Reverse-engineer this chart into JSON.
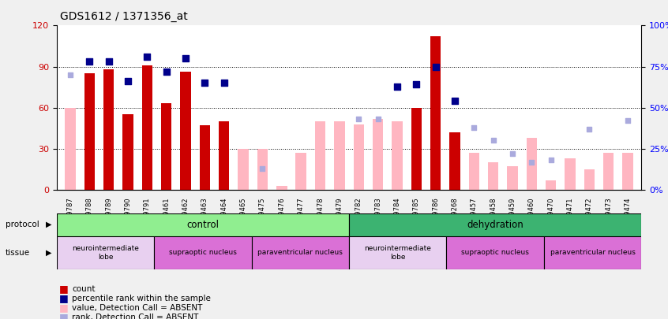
{
  "title": "GDS1612 / 1371356_at",
  "samples": [
    "GSM69787",
    "GSM69788",
    "GSM69789",
    "GSM69790",
    "GSM69791",
    "GSM69461",
    "GSM69462",
    "GSM69463",
    "GSM69464",
    "GSM69465",
    "GSM69475",
    "GSM69476",
    "GSM69477",
    "GSM69478",
    "GSM69479",
    "GSM69782",
    "GSM69783",
    "GSM69784",
    "GSM69785",
    "GSM69786",
    "GSM69268",
    "GSM69457",
    "GSM69458",
    "GSM69459",
    "GSM69460",
    "GSM69470",
    "GSM69471",
    "GSM69472",
    "GSM69473",
    "GSM69474"
  ],
  "count_values": [
    0,
    85,
    88,
    55,
    91,
    63,
    86,
    47,
    50,
    0,
    0,
    0,
    0,
    0,
    0,
    0,
    0,
    0,
    60,
    112,
    42,
    0,
    0,
    0,
    0,
    0,
    0,
    0,
    0,
    0
  ],
  "rank_values": [
    0,
    78,
    78,
    66,
    81,
    72,
    80,
    65,
    65,
    0,
    0,
    0,
    0,
    0,
    0,
    0,
    0,
    63,
    64,
    75,
    54,
    0,
    0,
    0,
    0,
    0,
    0,
    0,
    0,
    0
  ],
  "value_absent": [
    60,
    0,
    0,
    0,
    0,
    0,
    0,
    0,
    0,
    30,
    30,
    3,
    27,
    50,
    50,
    48,
    52,
    50,
    0,
    0,
    0,
    27,
    20,
    17,
    38,
    7,
    23,
    15,
    27,
    27
  ],
  "rank_absent": [
    70,
    0,
    0,
    0,
    0,
    0,
    0,
    0,
    0,
    0,
    13,
    0,
    0,
    0,
    0,
    43,
    43,
    0,
    0,
    0,
    0,
    38,
    30,
    22,
    17,
    18,
    0,
    37,
    0,
    42
  ],
  "is_count_present": [
    false,
    true,
    true,
    true,
    true,
    true,
    true,
    true,
    true,
    false,
    false,
    false,
    false,
    false,
    false,
    false,
    false,
    false,
    true,
    true,
    true,
    false,
    false,
    false,
    false,
    false,
    false,
    false,
    false,
    false
  ],
  "is_rank_present": [
    false,
    true,
    true,
    true,
    true,
    true,
    true,
    true,
    true,
    false,
    false,
    false,
    false,
    false,
    false,
    false,
    false,
    true,
    true,
    true,
    true,
    false,
    false,
    false,
    false,
    false,
    false,
    false,
    false,
    false
  ],
  "ylim_left": [
    0,
    120
  ],
  "ylim_right": [
    0,
    100
  ],
  "yticks_left": [
    0,
    30,
    60,
    90,
    120
  ],
  "yticks_right": [
    0,
    25,
    50,
    75,
    100
  ],
  "ytick_labels_right": [
    "0%",
    "25%",
    "50%",
    "75%",
    "100%"
  ],
  "bar_color_present": "#CC0000",
  "bar_color_absent": "#FFB6C1",
  "rank_color_present": "#00008B",
  "rank_color_absent": "#AAAADD",
  "background_color": "#F0F0F0"
}
